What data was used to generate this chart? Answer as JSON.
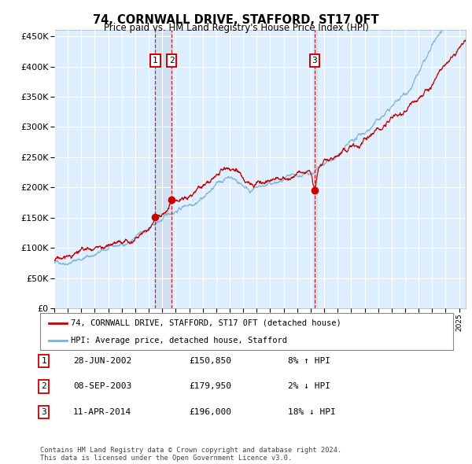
{
  "title": "74, CORNWALL DRIVE, STAFFORD, ST17 0FT",
  "subtitle": "Price paid vs. HM Land Registry's House Price Index (HPI)",
  "ytick_values": [
    0,
    50000,
    100000,
    150000,
    200000,
    250000,
    300000,
    350000,
    400000,
    450000
  ],
  "ylim": [
    0,
    460000
  ],
  "xlim_start": 1995.0,
  "xlim_end": 2025.5,
  "purchases": [
    {
      "num": 1,
      "date": "28-JUN-2002",
      "price": 150850,
      "year": 2002.49,
      "pct": "8%",
      "dir": "↑"
    },
    {
      "num": 2,
      "date": "08-SEP-2003",
      "price": 179950,
      "year": 2003.69,
      "pct": "2%",
      "dir": "↓"
    },
    {
      "num": 3,
      "date": "11-APR-2014",
      "price": 196000,
      "year": 2014.28,
      "pct": "18%",
      "dir": "↓"
    }
  ],
  "legend_label_red": "74, CORNWALL DRIVE, STAFFORD, ST17 0FT (detached house)",
  "legend_label_blue": "HPI: Average price, detached house, Stafford",
  "footer": "Contains HM Land Registry data © Crown copyright and database right 2024.\nThis data is licensed under the Open Government Licence v3.0.",
  "red_color": "#cc0000",
  "blue_color": "#7ab0d4",
  "bg_color": "#ddeeff",
  "grid_color": "#ffffff",
  "vline_color": "#cc0000",
  "vspan_color": "#c8d8e8"
}
